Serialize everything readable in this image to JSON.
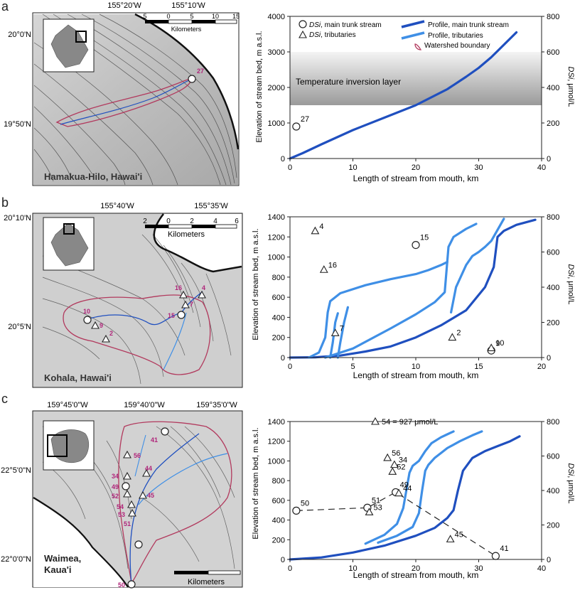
{
  "colors": {
    "trunk": "#1f4fbf",
    "tributary": "#3f8fe6",
    "watershed": "#b23a5e",
    "station": "#b0257a",
    "inversion_dark": "#9a9a9a",
    "inversion_light": "#f4f4f4"
  },
  "map_a": {
    "panel_letter": "a",
    "lon_labels": [
      "155°20'W",
      "155°10'W"
    ],
    "lat_labels": [
      "20°0'N",
      "19°50'N"
    ],
    "scale_ticks": [
      "5",
      "0",
      "5",
      "10",
      "15"
    ],
    "scale_unit": "Kilometers",
    "place": "Hamakua-Hilo, Hawai'i",
    "stations": [
      "27"
    ]
  },
  "map_b": {
    "panel_letter": "b",
    "lon_labels": [
      "155°40'W",
      "155°35'W"
    ],
    "lat_labels": [
      "20°10'N",
      "20°5'N"
    ],
    "scale_ticks": [
      "2",
      "0",
      "2",
      "4",
      "6"
    ],
    "scale_unit": "Kilometers",
    "place": "Kohala, Hawai'i",
    "stations": [
      "10",
      "9",
      "2",
      "16",
      "7",
      "15",
      "4"
    ]
  },
  "map_c": {
    "panel_letter": "c",
    "lon_labels": [
      "159°45'0\"W",
      "159°40'0\"W",
      "159°35'0\"W"
    ],
    "lat_labels": [
      "22°5'0\"N",
      "22°0'0\"N"
    ],
    "scale_unit": "Kilometers",
    "place_line1": "Waimea,",
    "place_line2": "Kaua'i",
    "stations": [
      "41",
      "56",
      "44",
      "34",
      "49",
      "52",
      "54",
      "53",
      "51",
      "45",
      "50"
    ]
  },
  "chart_data": [
    {
      "type": "line",
      "panel": "a",
      "xlabel": "Length of stream from mouth, km",
      "ylabel": "Elevation of stream bed, m a.s.l.",
      "y2label": "DSi, μmol/L",
      "xlim": [
        0,
        40
      ],
      "ylim": [
        0,
        4000
      ],
      "y2lim": [
        0,
        800
      ],
      "xticks": [
        0,
        10,
        20,
        30,
        40
      ],
      "yticks": [
        0,
        1000,
        2000,
        3000,
        4000
      ],
      "y2ticks": [
        0,
        200,
        400,
        600,
        800
      ],
      "legend": {
        "position": "top",
        "circle_label": "DSi, main trunk stream",
        "triangle_label": "DSi, tributaries",
        "trunk_label": "Profile, main trunk stream",
        "trib_label": "Profile, tributaries",
        "watershed_label": "Watershed boundary"
      },
      "band": {
        "label": "Temperature inversion layer",
        "y_from": 1500,
        "y_to": 3000
      },
      "series": [
        {
          "role": "trunk",
          "x": [
            0,
            2,
            5,
            10,
            15,
            20,
            25,
            28,
            30,
            32,
            34,
            36
          ],
          "y": [
            0,
            150,
            400,
            800,
            1150,
            1500,
            1950,
            2300,
            2550,
            2850,
            3200,
            3550
          ]
        }
      ],
      "circles": [
        {
          "x": 1,
          "dsi": 180,
          "label": "27"
        }
      ],
      "triangles": []
    },
    {
      "type": "line",
      "panel": "b",
      "xlabel": "Length of stream from mouth, km",
      "ylabel": "Elevation of stream bed, m a.s.l.",
      "y2label": "DSi, μmol/L",
      "xlim": [
        0,
        20
      ],
      "ylim": [
        0,
        1400
      ],
      "y2lim": [
        0,
        800
      ],
      "xticks": [
        0,
        5,
        10,
        15,
        20
      ],
      "yticks": [
        0,
        200,
        400,
        600,
        800,
        1000,
        1200,
        1400
      ],
      "y2ticks": [
        0,
        200,
        400,
        600,
        800
      ],
      "series": [
        {
          "role": "trunk",
          "x": [
            0,
            2,
            4,
            6,
            8,
            10,
            12,
            14,
            15.5,
            16.2,
            16.5,
            17,
            18,
            19.5
          ],
          "y": [
            0,
            3,
            20,
            60,
            110,
            200,
            320,
            470,
            700,
            900,
            1200,
            1260,
            1320,
            1370
          ]
        },
        {
          "role": "tributary",
          "x": [
            1.5,
            2.3,
            2.8,
            3.0,
            3.2,
            4,
            6,
            8,
            10,
            11,
            12,
            12.5
          ],
          "y": [
            0,
            50,
            200,
            450,
            560,
            640,
            720,
            780,
            830,
            870,
            920,
            950
          ]
        },
        {
          "role": "tributary",
          "x": [
            3.2,
            3.4,
            3.6,
            3.8
          ],
          "y": [
            0,
            150,
            350,
            440
          ]
        },
        {
          "role": "tributary",
          "x": [
            3.8,
            4.0,
            4.3,
            4.6
          ],
          "y": [
            0,
            150,
            350,
            500
          ]
        },
        {
          "role": "tributary",
          "x": [
            2.8,
            5,
            8,
            10,
            11.5,
            12.3,
            12.6,
            13,
            14,
            14.8
          ],
          "y": [
            0,
            90,
            290,
            430,
            550,
            650,
            1100,
            1200,
            1280,
            1330
          ]
        },
        {
          "role": "tributary",
          "x": [
            12.8,
            13.2,
            14,
            14.5,
            15,
            15.5,
            16,
            17
          ],
          "y": [
            450,
            700,
            920,
            1010,
            1050,
            1100,
            1160,
            1380
          ]
        }
      ],
      "circles": [
        {
          "x": 10,
          "dsi": 640,
          "label": "15"
        },
        {
          "x": 16,
          "dsi": 40,
          "label": "10"
        }
      ],
      "triangles": [
        {
          "x": 2,
          "dsi": 720,
          "label": "4"
        },
        {
          "x": 2.7,
          "dsi": 500,
          "label": "16"
        },
        {
          "x": 3.6,
          "dsi": 140,
          "label": "7"
        },
        {
          "x": 12.9,
          "dsi": 115,
          "label": "2"
        },
        {
          "x": 16,
          "dsi": 55,
          "label": "9"
        }
      ]
    },
    {
      "type": "line",
      "panel": "c",
      "xlabel": "Length of stream from mouth, km",
      "ylabel": "Elevation of stream bed, m a.s.l.",
      "y2label": "DSi, μmol/L",
      "xlim": [
        0,
        40
      ],
      "ylim": [
        0,
        1400
      ],
      "y2lim": [
        0,
        800
      ],
      "xticks": [
        0,
        10,
        20,
        30,
        40
      ],
      "yticks": [
        0,
        200,
        400,
        600,
        800,
        1000,
        1200,
        1400
      ],
      "y2ticks": [
        0,
        200,
        400,
        600,
        800
      ],
      "annotation": "54 = 927 μmol/L",
      "series": [
        {
          "role": "trunk",
          "x": [
            0,
            5,
            10,
            15,
            20,
            23,
            25,
            26,
            26.7,
            27.5,
            29,
            31,
            33,
            35,
            36.5
          ],
          "y": [
            0,
            20,
            70,
            140,
            240,
            320,
            420,
            500,
            700,
            900,
            1030,
            1100,
            1150,
            1200,
            1250
          ]
        },
        {
          "role": "tributary",
          "x": [
            12,
            15,
            17,
            18,
            18.5,
            19,
            19.5,
            20.5,
            21.5,
            22.5,
            24,
            25,
            26
          ],
          "y": [
            160,
            250,
            360,
            520,
            700,
            880,
            950,
            1000,
            1100,
            1180,
            1240,
            1270,
            1300
          ]
        },
        {
          "role": "tributary",
          "x": [
            14,
            17,
            19.5,
            20.5,
            21,
            21.5,
            22,
            23,
            25,
            27,
            29,
            30.5
          ],
          "y": [
            170,
            240,
            330,
            470,
            700,
            900,
            960,
            1030,
            1130,
            1200,
            1260,
            1300
          ]
        }
      ],
      "circles": [
        {
          "x": 1,
          "dsi": 283,
          "label": "50"
        },
        {
          "x": 12.3,
          "dsi": 300,
          "label": "51"
        },
        {
          "x": 16.8,
          "dsi": 390,
          "label": "49"
        },
        {
          "x": 32.7,
          "dsi": 20,
          "label": "41"
        }
      ],
      "triangles": [
        {
          "x": 12.6,
          "dsi": 275,
          "label": "53"
        },
        {
          "x": 15.5,
          "dsi": 590,
          "label": "56"
        },
        {
          "x": 16.6,
          "dsi": 550,
          "label": "34"
        },
        {
          "x": 16.3,
          "dsi": 510,
          "label": "52"
        },
        {
          "x": 17.3,
          "dsi": 385,
          "label": "44"
        },
        {
          "x": 25.5,
          "dsi": 118,
          "label": "45"
        }
      ],
      "dashed_path": [
        "50",
        "51",
        "49",
        "41"
      ]
    }
  ]
}
